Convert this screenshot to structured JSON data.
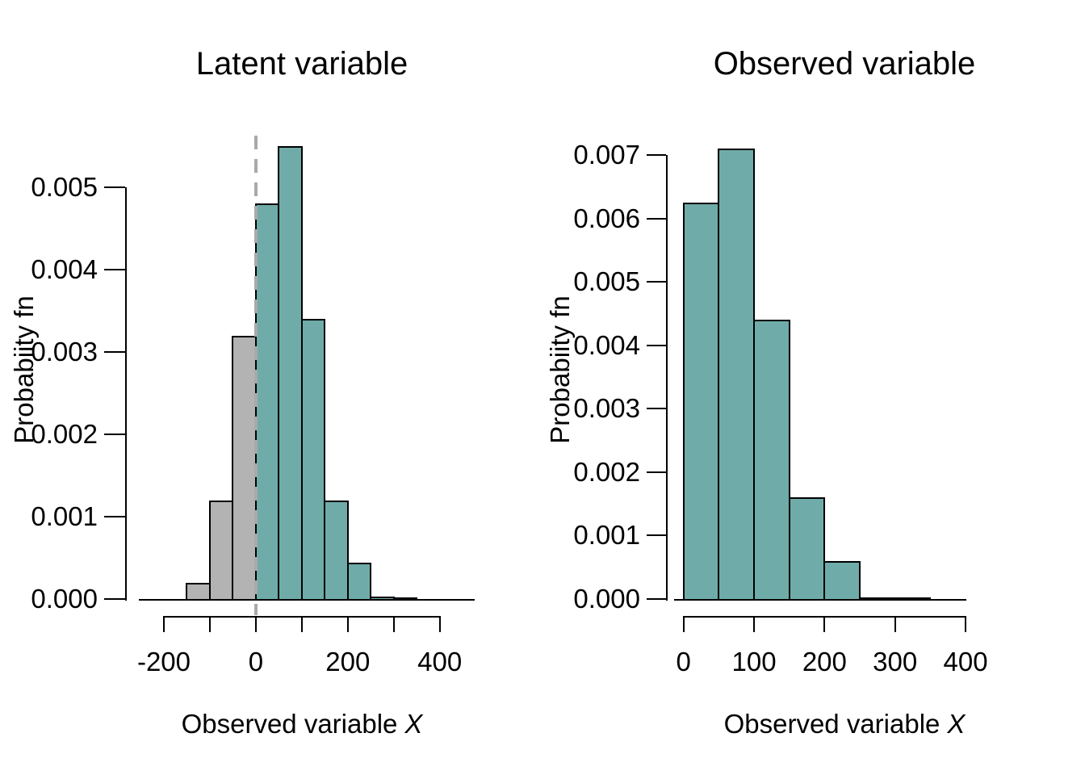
{
  "colors": {
    "teal": "#6FACA9",
    "gray": "#B3B3B3",
    "bar_border": "#000000",
    "axis": "#000000",
    "text": "#000000",
    "reference_line": "#A9A9A9",
    "background": "#FFFFFF"
  },
  "chart_data": [
    {
      "id": "latent",
      "type": "bar",
      "title": "Latent variable",
      "xlabel": "Observed variable X",
      "xlabel_text": "Observed variable",
      "xlabel_math": "X",
      "ylabel": "Probabiity fn",
      "bin_width": 50,
      "xlim": [
        -250,
        470
      ],
      "ylim": [
        0,
        0.0056
      ],
      "grid": false,
      "legend": null,
      "bars": [
        {
          "from": -150,
          "to": -100,
          "value": 0.0002,
          "fill": "gray"
        },
        {
          "from": -100,
          "to": -50,
          "value": 0.0012,
          "fill": "gray"
        },
        {
          "from": -50,
          "to": 0,
          "value": 0.0032,
          "fill": "gray"
        },
        {
          "from": 0,
          "to": 50,
          "value": 0.0048,
          "fill": "teal"
        },
        {
          "from": 50,
          "to": 100,
          "value": 0.0055,
          "fill": "teal"
        },
        {
          "from": 100,
          "to": 150,
          "value": 0.0034,
          "fill": "teal"
        },
        {
          "from": 150,
          "to": 200,
          "value": 0.0012,
          "fill": "teal"
        },
        {
          "from": 200,
          "to": 250,
          "value": 0.00044,
          "fill": "teal"
        },
        {
          "from": 250,
          "to": 300,
          "value": 3e-05,
          "fill": "teal"
        },
        {
          "from": 300,
          "to": 350,
          "value": 2e-05,
          "fill": "teal"
        }
      ],
      "x_ticks": [
        {
          "v": -200,
          "label": "-200"
        },
        {
          "v": -100,
          "label": ""
        },
        {
          "v": 0,
          "label": "0"
        },
        {
          "v": 100,
          "label": ""
        },
        {
          "v": 200,
          "label": "200"
        },
        {
          "v": 300,
          "label": ""
        },
        {
          "v": 400,
          "label": "400"
        }
      ],
      "y_ticks": [
        {
          "v": 0.0,
          "label": "0.000"
        },
        {
          "v": 0.001,
          "label": "0.001"
        },
        {
          "v": 0.002,
          "label": "0.002"
        },
        {
          "v": 0.003,
          "label": "0.003"
        },
        {
          "v": 0.004,
          "label": "0.004"
        },
        {
          "v": 0.005,
          "label": "0.005"
        }
      ],
      "reference_line": {
        "x": 0,
        "style": "dashed",
        "color_key": "reference_line"
      }
    },
    {
      "id": "observed",
      "type": "bar",
      "title": "Observed variable",
      "xlabel": "Observed variable X",
      "xlabel_text": "Observed variable",
      "xlabel_math": "X",
      "ylabel": "Probabiity fn",
      "bin_width": 50,
      "xlim": [
        -15,
        420
      ],
      "ylim": [
        0,
        0.0072
      ],
      "grid": false,
      "legend": null,
      "bars": [
        {
          "from": 0,
          "to": 50,
          "value": 0.00625,
          "fill": "teal"
        },
        {
          "from": 50,
          "to": 100,
          "value": 0.0071,
          "fill": "teal"
        },
        {
          "from": 100,
          "to": 150,
          "value": 0.0044,
          "fill": "teal"
        },
        {
          "from": 150,
          "to": 200,
          "value": 0.0016,
          "fill": "teal"
        },
        {
          "from": 200,
          "to": 250,
          "value": 0.0006,
          "fill": "teal"
        },
        {
          "from": 250,
          "to": 300,
          "value": 3e-05,
          "fill": "teal"
        },
        {
          "from": 300,
          "to": 350,
          "value": 2e-05,
          "fill": "teal"
        }
      ],
      "x_ticks": [
        {
          "v": 0,
          "label": "0"
        },
        {
          "v": 100,
          "label": "100"
        },
        {
          "v": 200,
          "label": "200"
        },
        {
          "v": 300,
          "label": "300"
        },
        {
          "v": 400,
          "label": "400"
        }
      ],
      "y_ticks": [
        {
          "v": 0.0,
          "label": "0.000"
        },
        {
          "v": 0.001,
          "label": "0.001"
        },
        {
          "v": 0.002,
          "label": "0.002"
        },
        {
          "v": 0.003,
          "label": "0.003"
        },
        {
          "v": 0.004,
          "label": "0.004"
        },
        {
          "v": 0.005,
          "label": "0.005"
        },
        {
          "v": 0.006,
          "label": "0.006"
        },
        {
          "v": 0.007,
          "label": "0.007"
        }
      ],
      "reference_line": null
    }
  ]
}
